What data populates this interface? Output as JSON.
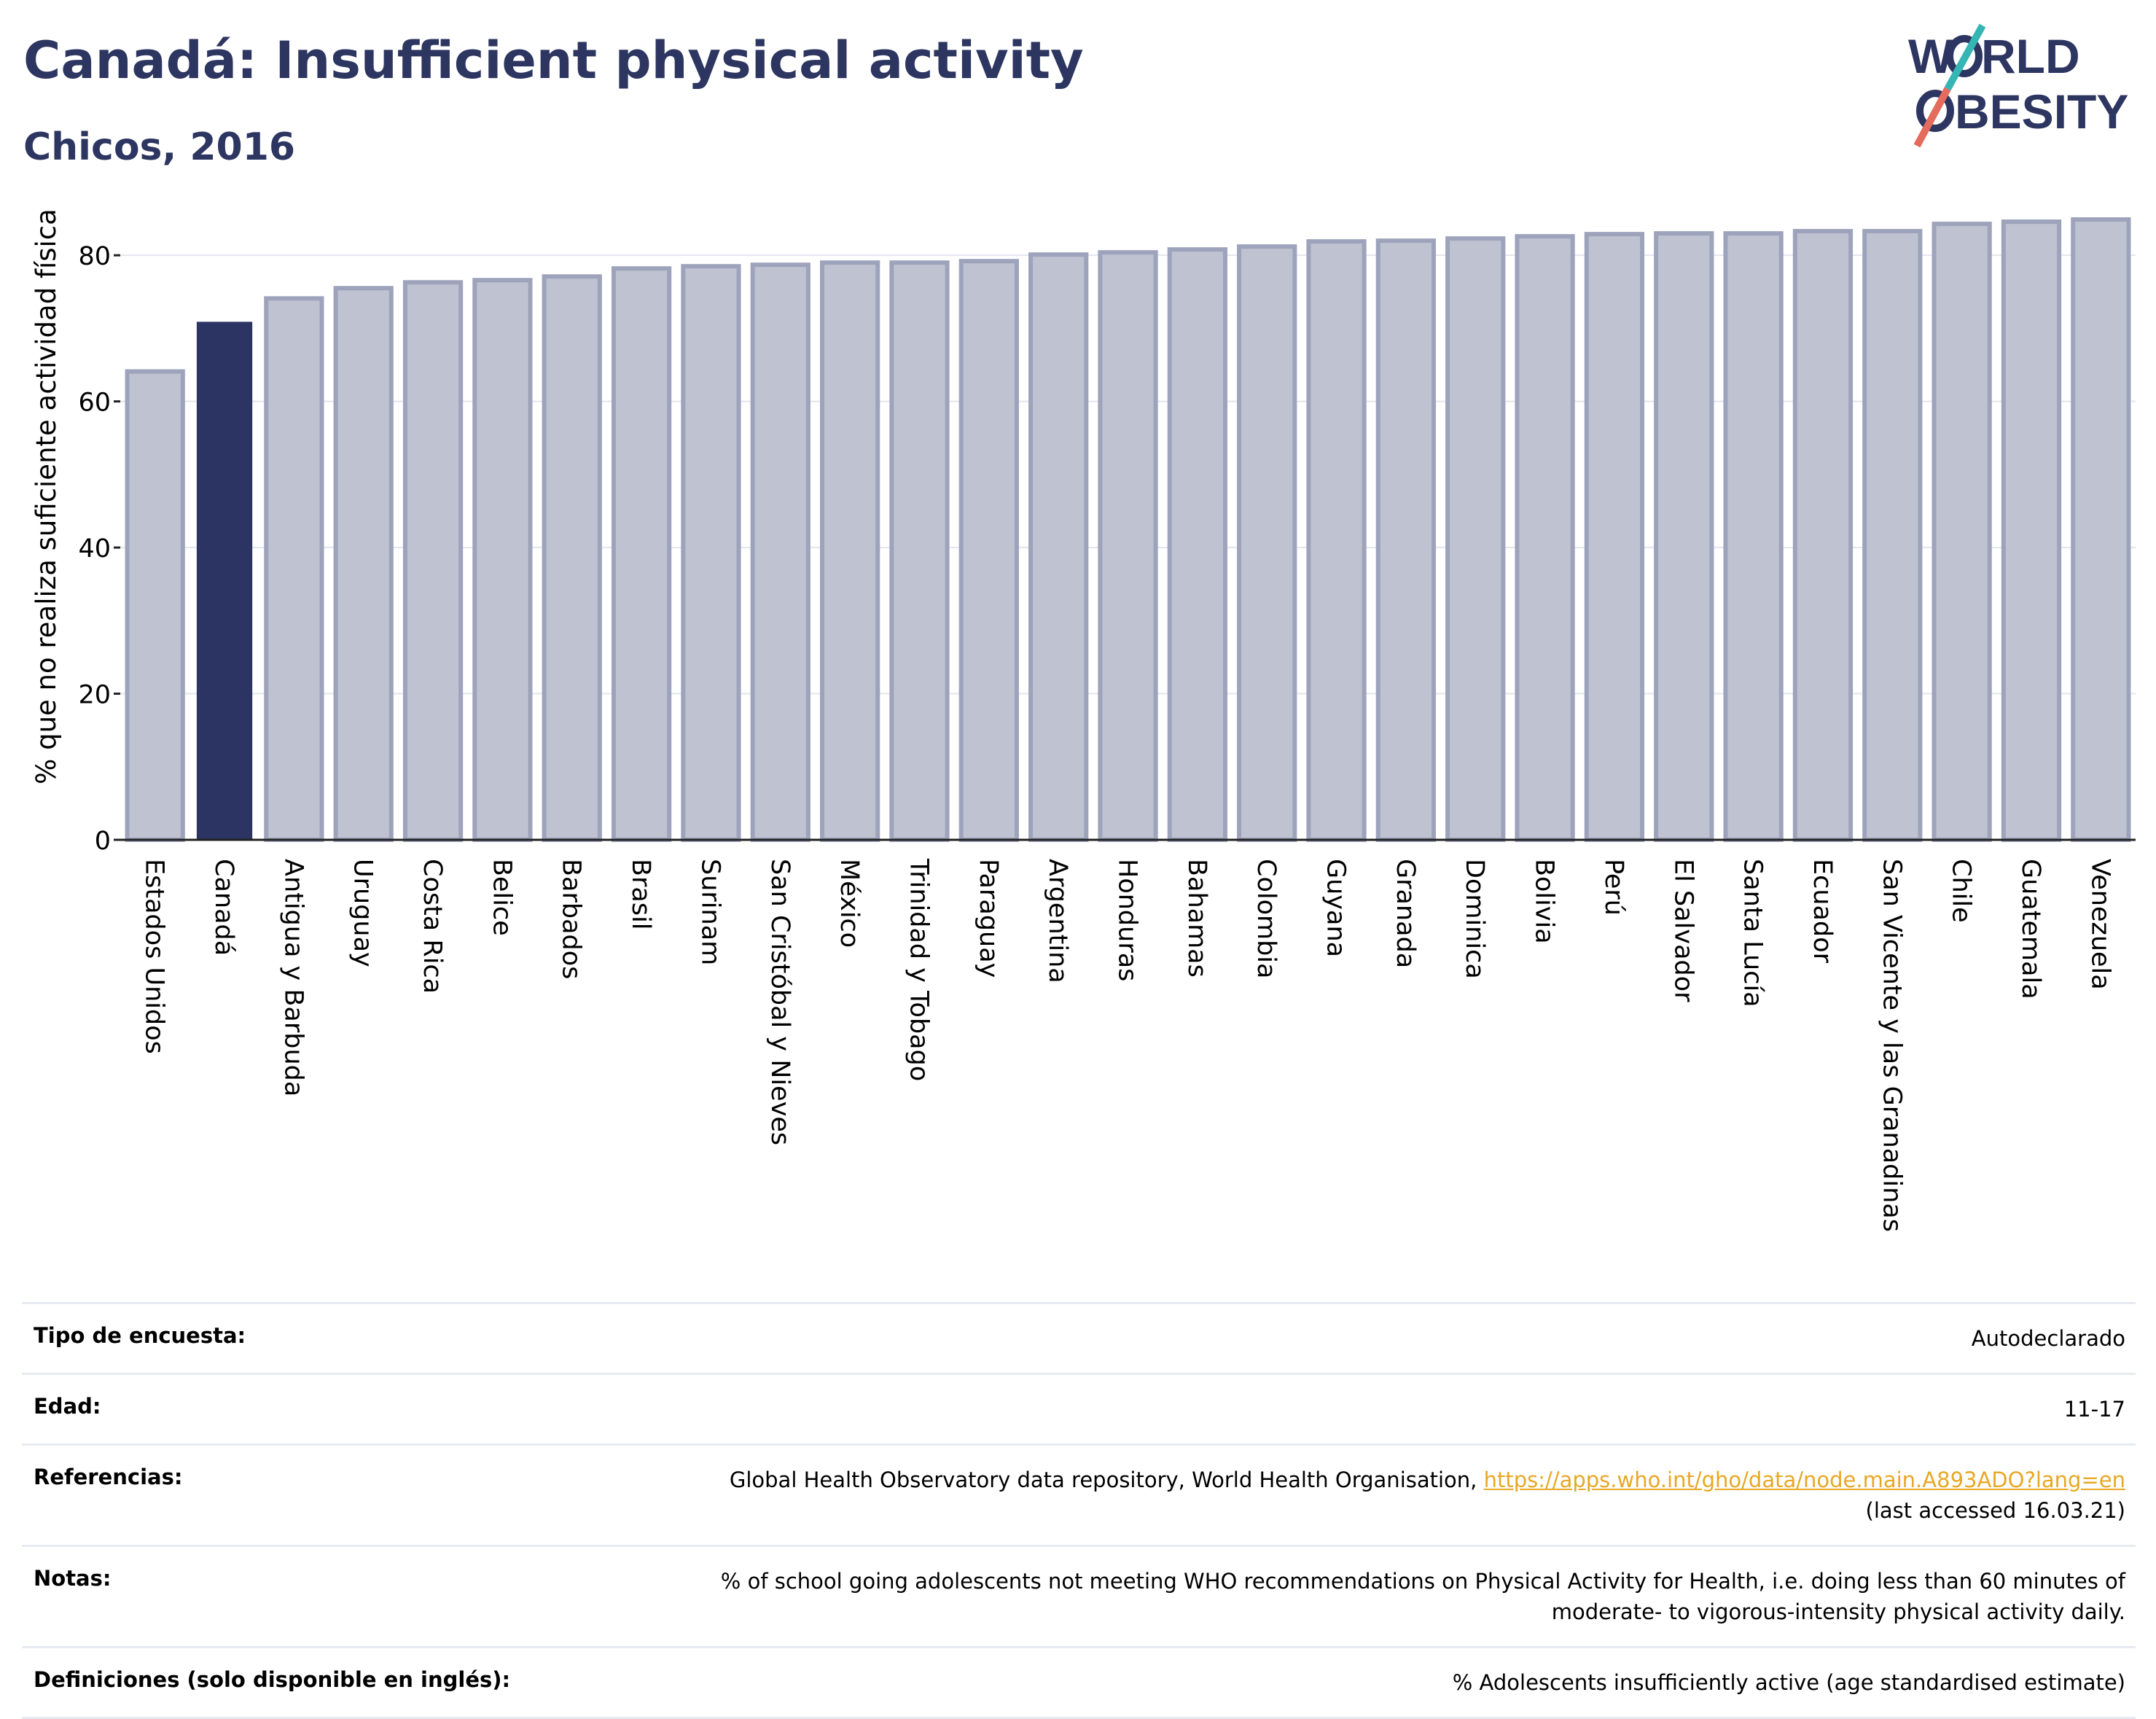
{
  "header": {
    "title": "Canadá: Insufficient physical activity",
    "subtitle": "Chicos, 2016"
  },
  "logo": {
    "line1_left": "W",
    "line1_right": "RLD",
    "line2_right": "BESITY"
  },
  "chart_data": {
    "type": "bar",
    "title": "Canadá: Insufficient physical activity",
    "subtitle": "Chicos, 2016",
    "ylabel": "% que no realiza suficiente actividad física",
    "xlabel": "",
    "ylim": [
      0,
      88
    ],
    "yticks": [
      0,
      20,
      40,
      60,
      80
    ],
    "grid": true,
    "highlight": "Canadá",
    "highlight_color": "#2b3463",
    "bar_color": "#bfc2d0",
    "bar_edge_color": "#9ea3bc",
    "categories": [
      "Estados Unidos",
      "Canadá",
      "Antigua y Barbuda",
      "Uruguay",
      "Costa Rica",
      "Belice",
      "Barbados",
      "Brasil",
      "Surinam",
      "San Cristóbal y Nieves",
      "México",
      "Trinidad y Tobago",
      "Paraguay",
      "Argentina",
      "Honduras",
      "Bahamas",
      "Colombia",
      "Guyana",
      "Granada",
      "Dominica",
      "Bolivia",
      "Perú",
      "El Salvador",
      "Santa Lucía",
      "Ecuador",
      "San Vicente y las Granadinas",
      "Chile",
      "Guatemala",
      "Venezuela"
    ],
    "values": [
      64.1,
      70.9,
      74.1,
      75.5,
      76.3,
      76.6,
      77.1,
      78.2,
      78.5,
      78.7,
      79.0,
      79.0,
      79.2,
      80.1,
      80.4,
      80.8,
      81.2,
      81.9,
      82.0,
      82.3,
      82.6,
      82.9,
      83.0,
      83.0,
      83.3,
      83.3,
      84.3,
      84.6,
      84.9
    ]
  },
  "meta": {
    "survey_label": "Tipo de encuesta:",
    "survey_value": "Autodeclarado",
    "age_label": "Edad:",
    "age_value": "11-17",
    "refs_label": "Referencias:",
    "refs_text": "Global Health Observatory data repository, World Health Organisation, ",
    "refs_link": "https://apps.who.int/gho/data/node.main.A893ADO?lang=en",
    "refs_accessed": "(last accessed 16.03.21)",
    "notes_label": "Notas:",
    "notes_line1": "% of school going adolescents not meeting WHO recommendations on Physical Activity for Health, i.e. doing less than 60 minutes of",
    "notes_line2": "moderate- to vigorous-intensity physical activity daily.",
    "defs_label": "Definiciones (solo disponible en inglés):",
    "defs_value": "% Adolescents insufficiently active (age standardised estimate)"
  }
}
